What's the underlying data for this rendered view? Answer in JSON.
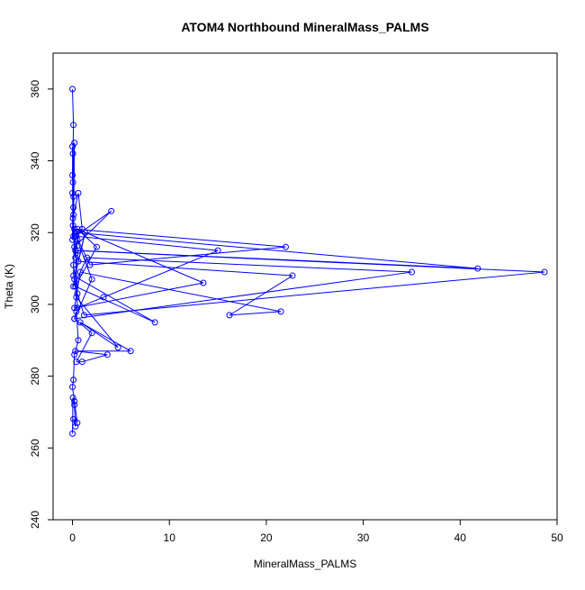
{
  "chart_data": {
    "type": "line",
    "title": "ATOM4 Northbound MineralMass_PALMS",
    "xlabel": "MineralMass_PALMS",
    "ylabel": "Theta (K)",
    "xlim": [
      -2,
      50
    ],
    "ylim": [
      240,
      370
    ],
    "x_ticks": [
      0,
      10,
      20,
      30,
      40,
      50
    ],
    "y_ticks": [
      240,
      260,
      280,
      300,
      320,
      340,
      360
    ],
    "grid": false,
    "legend": "none",
    "series_color": "#0000ff",
    "marker": "open-circle",
    "series": [
      {
        "x": [
          0,
          0.1,
          0.05,
          0,
          0.1,
          0,
          0.05,
          0.1,
          0,
          0.05,
          0.1,
          0,
          0.2,
          0.1,
          0.3,
          0.05,
          0.6,
          1.0,
          0.3,
          4.0,
          0.2,
          0.1,
          0.5,
          1.2,
          48.7,
          0.3,
          0.5,
          2.0,
          0.2,
          35.0,
          1.5,
          0.1,
          0.6,
          41.8,
          0.3,
          0.5,
          3.2,
          15.0,
          0.4,
          1.8,
          22.0,
          0.2,
          0.1,
          8.5,
          0.3,
          2.5,
          0.5,
          13.5,
          0.2,
          0.8,
          21.5,
          16.2,
          22.7,
          0.6,
          1.3,
          0.2,
          0.4,
          4.7,
          0.8,
          6.0,
          0.3,
          3.6,
          1.0,
          0.4,
          2.0,
          0.2,
          0.4,
          0.6,
          0.2,
          0.1,
          0,
          0.2,
          0.5,
          0.1,
          0.3,
          0.2,
          0.05,
          0
        ],
        "y": [
          360,
          350,
          342,
          336,
          330,
          344,
          322,
          327,
          318,
          334,
          325,
          331,
          345,
          319,
          313,
          324,
          331,
          321,
          319,
          326,
          316,
          311,
          303,
          297,
          309,
          315,
          318,
          307,
          296,
          309,
          313,
          305,
          315,
          310,
          320,
          299,
          302,
          315,
          319,
          311,
          316,
          321,
          308,
          295,
          305,
          316,
          321,
          306,
          299,
          309,
          298,
          297,
          308,
          312,
          320,
          307,
          302,
          288,
          295,
          287,
          287,
          286,
          284,
          284,
          292,
          296,
          298,
          290,
          286,
          279,
          277,
          273,
          267,
          268,
          266,
          272,
          274,
          264
        ]
      }
    ]
  }
}
